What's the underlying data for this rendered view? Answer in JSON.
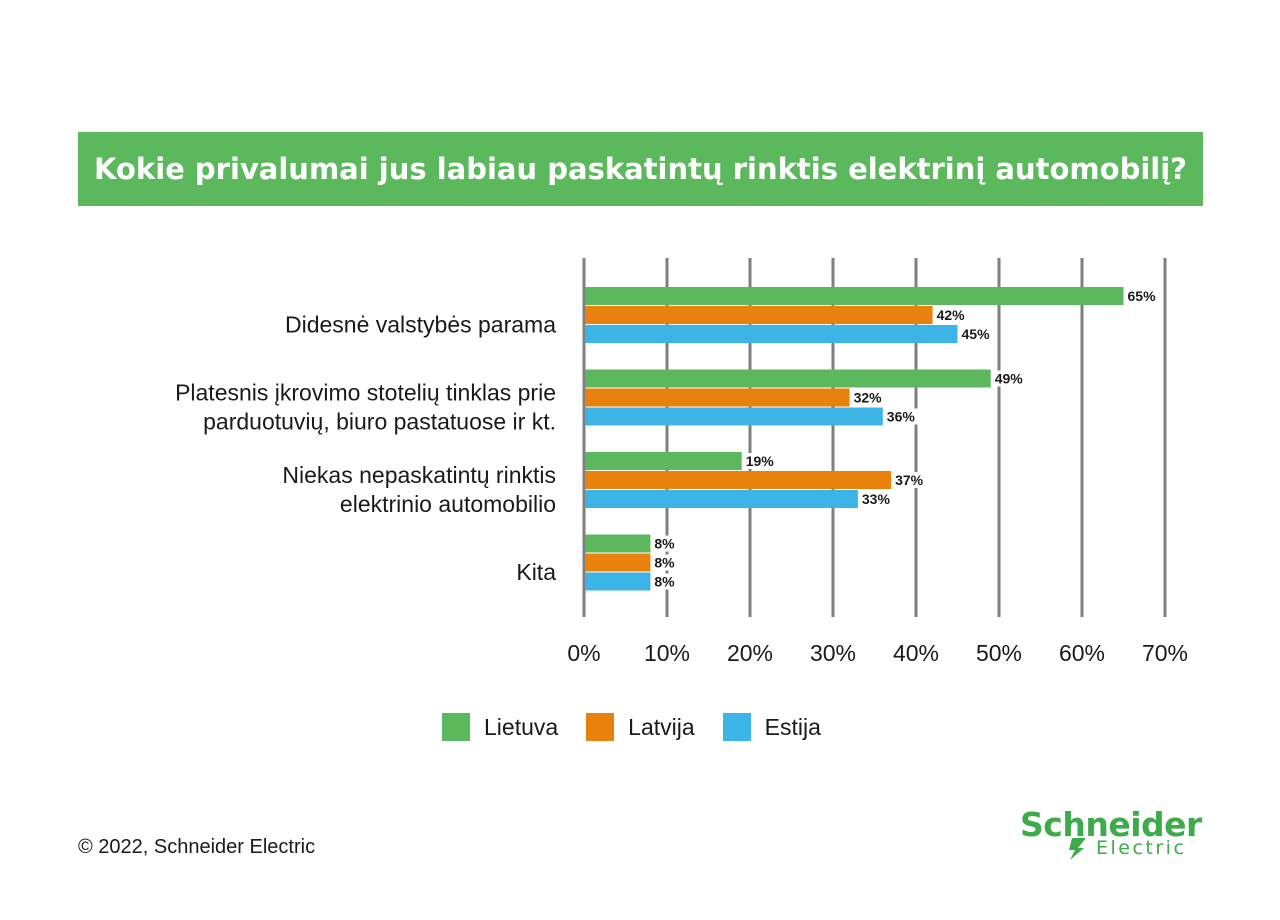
{
  "title": "Kokie privalumai jus labiau paskatintų rinktis elektrinį automobilį?",
  "chart_data": {
    "type": "bar",
    "orientation": "horizontal",
    "categories": [
      [
        "Didesnė valstybės parama"
      ],
      [
        "Platesnis įkrovimo stotelių tinklas prie",
        "parduotuvių, biuro pastatuose ir kt."
      ],
      [
        "Niekas nepaskatintų rinktis",
        "elektrinio automobilio"
      ],
      [
        "Kita"
      ]
    ],
    "series": [
      {
        "name": "Lietuva",
        "color": "#5cb85c",
        "values": [
          65,
          49,
          19,
          8
        ]
      },
      {
        "name": "Latvija",
        "color": "#e8820c",
        "values": [
          42,
          32,
          37,
          8
        ]
      },
      {
        "name": "Estija",
        "color": "#3db4e6",
        "values": [
          45,
          36,
          33,
          8
        ]
      }
    ],
    "value_suffix": "%",
    "xlim": [
      0,
      70
    ],
    "xticks": [
      "0%",
      "10%",
      "20%",
      "30%",
      "40%",
      "50%",
      "60%",
      "70%"
    ],
    "grid": true,
    "legend_position": "bottom"
  },
  "legend": {
    "items": [
      {
        "label": "Lietuva",
        "color": "#5cb85c"
      },
      {
        "label": "Latvija",
        "color": "#e8820c"
      },
      {
        "label": "Estija",
        "color": "#3db4e6"
      }
    ]
  },
  "footer": {
    "copyright": "© 2022, Schneider Electric"
  },
  "logo": {
    "word": "Schneider",
    "sub": "Electric",
    "color": "#3dab4b"
  }
}
